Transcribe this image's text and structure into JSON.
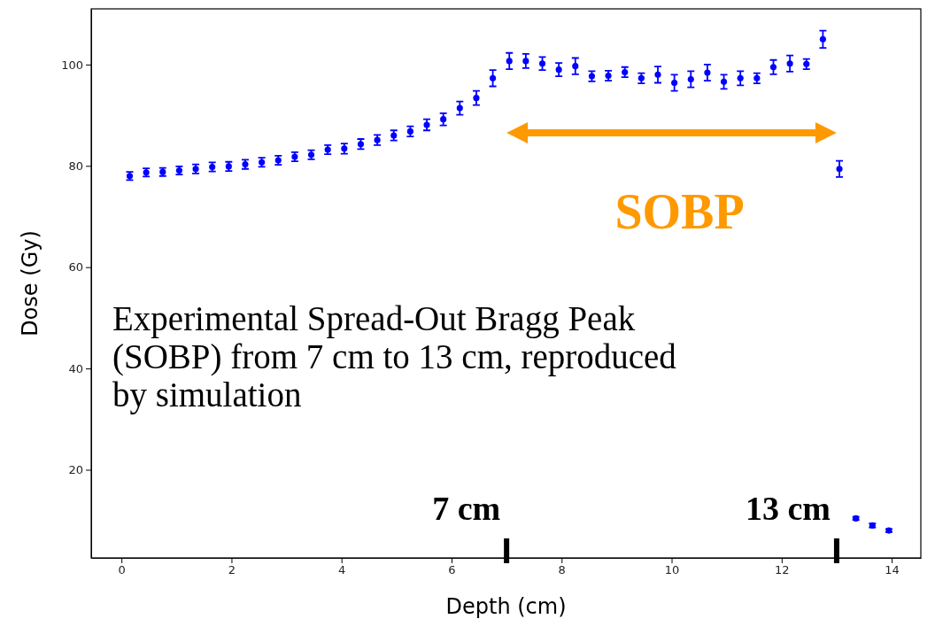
{
  "chart_data": {
    "type": "scatter",
    "xlabel": "Depth (cm)",
    "ylabel": "Dose (Gy)",
    "x": [
      0.15,
      0.45,
      0.75,
      1.05,
      1.35,
      1.65,
      1.95,
      2.25,
      2.55,
      2.85,
      3.15,
      3.45,
      3.75,
      4.05,
      4.35,
      4.65,
      4.95,
      5.25,
      5.55,
      5.85,
      6.15,
      6.45,
      6.75,
      7.05,
      7.35,
      7.65,
      7.95,
      8.25,
      8.55,
      8.85,
      9.15,
      9.45,
      9.75,
      10.05,
      10.35,
      10.65,
      10.95,
      11.25,
      11.55,
      11.85,
      12.15,
      12.45,
      12.75,
      13.05,
      13.35,
      13.65,
      13.95
    ],
    "series": [
      {
        "color": "#0000ff",
        "values": [
          78.0,
          78.7,
          78.8,
          79.1,
          79.4,
          79.8,
          79.9,
          80.3,
          80.7,
          81.1,
          81.8,
          82.2,
          83.2,
          83.4,
          84.3,
          85.1,
          86.0,
          86.8,
          88.1,
          89.2,
          91.4,
          93.4,
          97.3,
          100.7,
          100.7,
          100.2,
          99.0,
          99.7,
          97.7,
          97.8,
          98.5,
          97.3,
          98.0,
          96.4,
          97.1,
          98.4,
          96.6,
          97.3,
          97.3,
          99.5,
          100.2,
          100.1,
          105.0,
          79.4,
          10.4,
          9.0,
          8.0
        ],
        "errors": [
          0.8,
          0.8,
          0.8,
          0.8,
          0.9,
          0.9,
          0.9,
          0.9,
          0.9,
          0.9,
          0.9,
          0.9,
          0.9,
          1.0,
          1.0,
          1.0,
          1.0,
          1.0,
          1.1,
          1.2,
          1.3,
          1.4,
          1.6,
          1.6,
          1.4,
          1.3,
          1.3,
          1.6,
          1.0,
          1.0,
          1.0,
          1.0,
          1.6,
          1.6,
          1.6,
          1.6,
          1.4,
          1.4,
          1.0,
          1.4,
          1.6,
          1.0,
          1.7,
          1.6,
          0.3,
          0.4,
          0.3
        ]
      }
    ],
    "xlim": [
      -0.55,
      14.53
    ],
    "ylim": [
      2.6,
      111
    ],
    "xticks": [
      0,
      2,
      4,
      6,
      8,
      10,
      12,
      14
    ],
    "yticks": [
      20,
      40,
      60,
      80,
      100
    ],
    "marker": "circle",
    "grid": false,
    "ref_lines": [
      {
        "axis": "x",
        "value": 7,
        "label": "7 cm",
        "color": "#000000"
      },
      {
        "axis": "x",
        "value": 13,
        "label": "13 cm",
        "color": "#000000"
      }
    ],
    "annotations": [
      "SOBP",
      "Experimental Spread-Out Bragg Peak (SOBP) from 7 cm to 13 cm, reproduced by simulation"
    ]
  }
}
